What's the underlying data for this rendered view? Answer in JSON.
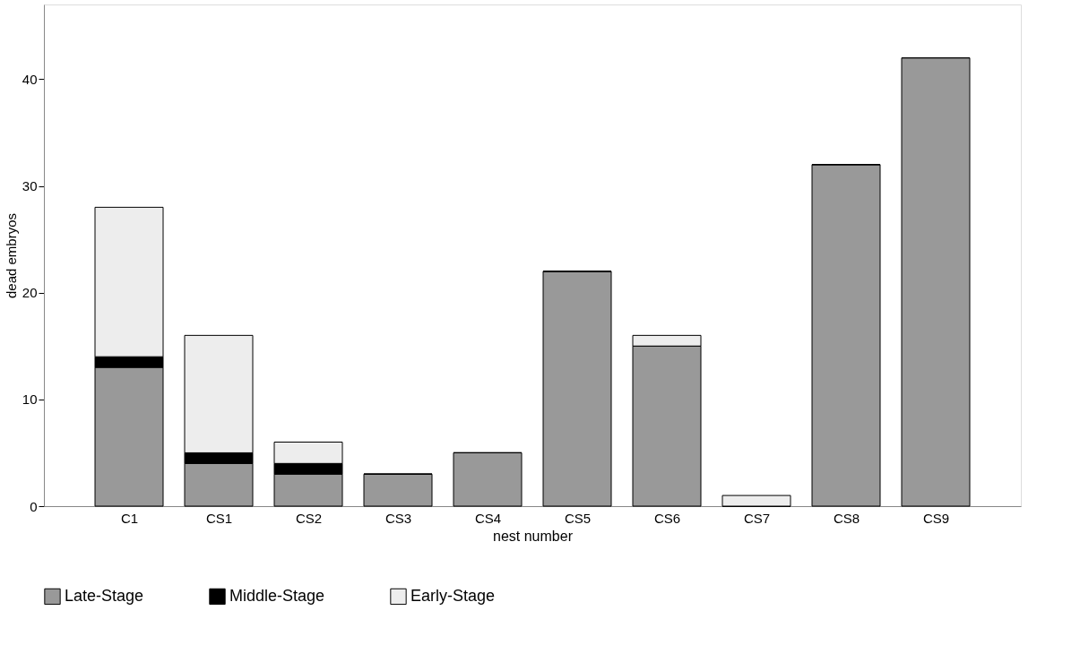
{
  "chart_data": {
    "type": "bar",
    "stacked": true,
    "xlabel": "nest number",
    "ylabel": "dead embryos",
    "categories": [
      "C1",
      "CS1",
      "CS2",
      "CS3",
      "CS4",
      "CS5",
      "CS6",
      "CS7",
      "CS8",
      "CS9"
    ],
    "series": [
      {
        "name": "Late-Stage",
        "color": "#999999",
        "values": [
          13,
          4,
          3,
          3,
          5,
          22,
          15,
          0,
          32,
          42
        ]
      },
      {
        "name": "Middle-Stage",
        "color": "#000000",
        "values": [
          1,
          1,
          1,
          0,
          0,
          0,
          0,
          0,
          0,
          0
        ]
      },
      {
        "name": "Early-Stage",
        "color": "#ededed",
        "values": [
          14,
          11,
          2,
          0,
          0,
          0,
          1,
          1,
          0,
          0
        ]
      }
    ],
    "ylim": [
      0,
      47
    ],
    "yticks": [
      0,
      10,
      20,
      30,
      40
    ],
    "grid": false,
    "legend": "bottom"
  }
}
